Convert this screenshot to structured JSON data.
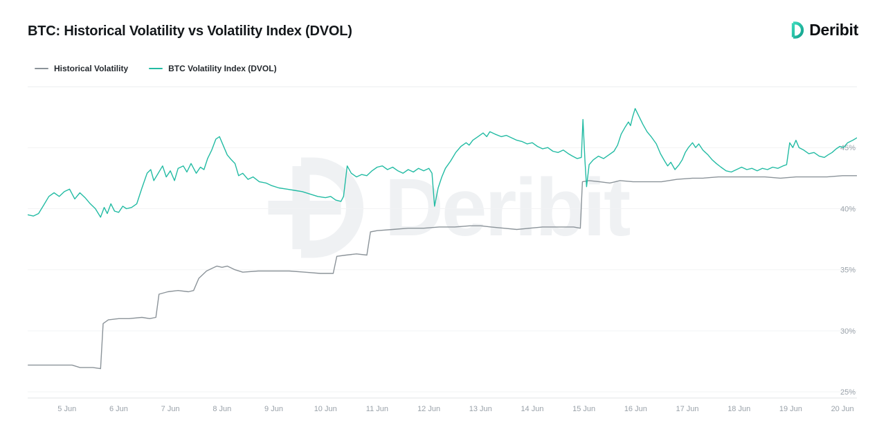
{
  "header": {
    "title": "BTC: Historical Volatility vs Volatility Index (DVOL)",
    "brand": "Deribit"
  },
  "watermark": {
    "text": "Deribit"
  },
  "legend": [
    {
      "id": "historical-volatility",
      "label": "Historical Volatility",
      "color": "#8b9399"
    },
    {
      "id": "btc-dvol",
      "label": "BTC Volatility Index (DVOL)",
      "color": "#22bba3"
    }
  ],
  "colors": {
    "historical_volatility": "#8b9399",
    "dvol": "#22bba3",
    "brand_teal": "#1cb39b"
  },
  "chart_data": {
    "type": "line",
    "title": "BTC: Historical Volatility vs Volatility Index (DVOL)",
    "x_unit": "date (June)",
    "xlim": [
      4.24,
      20.28
    ],
    "ylim": [
      24.5,
      50
    ],
    "grid": "horizontal",
    "legend_position": "top-left",
    "yticks": [
      25,
      30,
      35,
      40,
      45
    ],
    "ytick_suffix": "%",
    "xticks": [
      5,
      6,
      7,
      8,
      9,
      10,
      11,
      12,
      13,
      14,
      15,
      16,
      17,
      18,
      19,
      20
    ],
    "xtick_labels": [
      "5 Jun",
      "6 Jun",
      "7 Jun",
      "8 Jun",
      "9 Jun",
      "10 Jun",
      "11 Jun",
      "12 Jun",
      "13 Jun",
      "14 Jun",
      "15 Jun",
      "16 Jun",
      "17 Jun",
      "18 Jun",
      "19 Jun",
      "20 Jun"
    ],
    "series": [
      {
        "id": "historical-volatility",
        "name": "Historical Volatility",
        "color": "#8b9399",
        "points": [
          [
            4.25,
            27.2
          ],
          [
            4.7,
            27.2
          ],
          [
            5.1,
            27.2
          ],
          [
            5.25,
            27.0
          ],
          [
            5.5,
            27.0
          ],
          [
            5.65,
            26.9
          ],
          [
            5.7,
            30.6
          ],
          [
            5.8,
            30.9
          ],
          [
            6.0,
            31.0
          ],
          [
            6.2,
            31.0
          ],
          [
            6.45,
            31.1
          ],
          [
            6.6,
            31.0
          ],
          [
            6.72,
            31.1
          ],
          [
            6.78,
            33.0
          ],
          [
            6.95,
            33.2
          ],
          [
            7.15,
            33.3
          ],
          [
            7.35,
            33.2
          ],
          [
            7.45,
            33.3
          ],
          [
            7.55,
            34.3
          ],
          [
            7.7,
            34.9
          ],
          [
            7.8,
            35.1
          ],
          [
            7.9,
            35.3
          ],
          [
            8.0,
            35.2
          ],
          [
            8.1,
            35.3
          ],
          [
            8.25,
            35.0
          ],
          [
            8.4,
            34.8
          ],
          [
            8.7,
            34.9
          ],
          [
            9.0,
            34.9
          ],
          [
            9.3,
            34.9
          ],
          [
            9.6,
            34.8
          ],
          [
            9.9,
            34.7
          ],
          [
            10.15,
            34.7
          ],
          [
            10.22,
            36.1
          ],
          [
            10.4,
            36.2
          ],
          [
            10.6,
            36.3
          ],
          [
            10.8,
            36.2
          ],
          [
            10.87,
            38.1
          ],
          [
            11.0,
            38.2
          ],
          [
            11.3,
            38.3
          ],
          [
            11.6,
            38.4
          ],
          [
            11.9,
            38.4
          ],
          [
            12.2,
            38.5
          ],
          [
            12.5,
            38.5
          ],
          [
            12.8,
            38.6
          ],
          [
            13.0,
            38.6
          ],
          [
            13.2,
            38.5
          ],
          [
            13.45,
            38.4
          ],
          [
            13.7,
            38.3
          ],
          [
            13.95,
            38.4
          ],
          [
            14.2,
            38.5
          ],
          [
            14.5,
            38.5
          ],
          [
            14.8,
            38.5
          ],
          [
            14.93,
            38.4
          ],
          [
            14.97,
            42.2
          ],
          [
            15.1,
            42.3
          ],
          [
            15.3,
            42.2
          ],
          [
            15.5,
            42.1
          ],
          [
            15.7,
            42.3
          ],
          [
            15.95,
            42.2
          ],
          [
            16.2,
            42.2
          ],
          [
            16.5,
            42.2
          ],
          [
            16.8,
            42.4
          ],
          [
            17.1,
            42.5
          ],
          [
            17.3,
            42.5
          ],
          [
            17.6,
            42.6
          ],
          [
            17.9,
            42.6
          ],
          [
            18.2,
            42.6
          ],
          [
            18.5,
            42.6
          ],
          [
            18.8,
            42.5
          ],
          [
            19.1,
            42.6
          ],
          [
            19.4,
            42.6
          ],
          [
            19.7,
            42.6
          ],
          [
            20.0,
            42.7
          ],
          [
            20.28,
            42.7
          ]
        ]
      },
      {
        "id": "btc-dvol",
        "name": "BTC Volatility Index (DVOL)",
        "color": "#22bba3",
        "points": [
          [
            4.24,
            39.5
          ],
          [
            4.35,
            39.4
          ],
          [
            4.45,
            39.6
          ],
          [
            4.55,
            40.3
          ],
          [
            4.65,
            41.0
          ],
          [
            4.75,
            41.3
          ],
          [
            4.85,
            41.0
          ],
          [
            4.95,
            41.4
          ],
          [
            5.05,
            41.6
          ],
          [
            5.15,
            40.8
          ],
          [
            5.25,
            41.3
          ],
          [
            5.35,
            40.9
          ],
          [
            5.45,
            40.4
          ],
          [
            5.55,
            40.0
          ],
          [
            5.65,
            39.3
          ],
          [
            5.72,
            40.1
          ],
          [
            5.78,
            39.6
          ],
          [
            5.85,
            40.4
          ],
          [
            5.92,
            39.8
          ],
          [
            6.0,
            39.7
          ],
          [
            6.08,
            40.2
          ],
          [
            6.15,
            40.0
          ],
          [
            6.25,
            40.1
          ],
          [
            6.35,
            40.4
          ],
          [
            6.45,
            41.7
          ],
          [
            6.55,
            42.9
          ],
          [
            6.62,
            43.2
          ],
          [
            6.68,
            42.3
          ],
          [
            6.75,
            42.8
          ],
          [
            6.85,
            43.5
          ],
          [
            6.92,
            42.6
          ],
          [
            7.0,
            43.1
          ],
          [
            7.08,
            42.3
          ],
          [
            7.15,
            43.3
          ],
          [
            7.25,
            43.5
          ],
          [
            7.32,
            43.0
          ],
          [
            7.4,
            43.7
          ],
          [
            7.5,
            42.9
          ],
          [
            7.58,
            43.4
          ],
          [
            7.65,
            43.2
          ],
          [
            7.72,
            44.1
          ],
          [
            7.8,
            44.8
          ],
          [
            7.88,
            45.7
          ],
          [
            7.95,
            45.9
          ],
          [
            8.02,
            45.2
          ],
          [
            8.1,
            44.4
          ],
          [
            8.18,
            44.0
          ],
          [
            8.25,
            43.7
          ],
          [
            8.32,
            42.7
          ],
          [
            8.4,
            42.9
          ],
          [
            8.5,
            42.4
          ],
          [
            8.6,
            42.6
          ],
          [
            8.72,
            42.2
          ],
          [
            8.85,
            42.1
          ],
          [
            8.95,
            41.9
          ],
          [
            9.1,
            41.7
          ],
          [
            9.25,
            41.6
          ],
          [
            9.4,
            41.5
          ],
          [
            9.55,
            41.4
          ],
          [
            9.7,
            41.2
          ],
          [
            9.85,
            41.0
          ],
          [
            10.0,
            40.9
          ],
          [
            10.1,
            41.0
          ],
          [
            10.2,
            40.7
          ],
          [
            10.3,
            40.6
          ],
          [
            10.35,
            41.0
          ],
          [
            10.42,
            43.5
          ],
          [
            10.5,
            42.9
          ],
          [
            10.6,
            42.6
          ],
          [
            10.7,
            42.8
          ],
          [
            10.8,
            42.7
          ],
          [
            10.9,
            43.1
          ],
          [
            11.0,
            43.4
          ],
          [
            11.1,
            43.5
          ],
          [
            11.2,
            43.2
          ],
          [
            11.3,
            43.4
          ],
          [
            11.4,
            43.1
          ],
          [
            11.5,
            42.9
          ],
          [
            11.6,
            43.2
          ],
          [
            11.7,
            43.0
          ],
          [
            11.8,
            43.3
          ],
          [
            11.9,
            43.1
          ],
          [
            12.0,
            43.3
          ],
          [
            12.06,
            42.9
          ],
          [
            12.11,
            40.2
          ],
          [
            12.18,
            41.7
          ],
          [
            12.25,
            42.6
          ],
          [
            12.32,
            43.3
          ],
          [
            12.42,
            43.9
          ],
          [
            12.52,
            44.6
          ],
          [
            12.62,
            45.1
          ],
          [
            12.72,
            45.4
          ],
          [
            12.78,
            45.2
          ],
          [
            12.85,
            45.6
          ],
          [
            12.95,
            45.9
          ],
          [
            13.05,
            46.2
          ],
          [
            13.12,
            45.9
          ],
          [
            13.18,
            46.3
          ],
          [
            13.28,
            46.1
          ],
          [
            13.4,
            45.9
          ],
          [
            13.5,
            46.0
          ],
          [
            13.6,
            45.8
          ],
          [
            13.7,
            45.6
          ],
          [
            13.8,
            45.5
          ],
          [
            13.9,
            45.3
          ],
          [
            14.0,
            45.4
          ],
          [
            14.1,
            45.1
          ],
          [
            14.2,
            44.9
          ],
          [
            14.3,
            45.0
          ],
          [
            14.4,
            44.7
          ],
          [
            14.5,
            44.6
          ],
          [
            14.6,
            44.8
          ],
          [
            14.7,
            44.5
          ],
          [
            14.78,
            44.3
          ],
          [
            14.87,
            44.1
          ],
          [
            14.95,
            44.2
          ],
          [
            14.98,
            47.3
          ],
          [
            15.02,
            43.9
          ],
          [
            15.05,
            41.8
          ],
          [
            15.1,
            43.6
          ],
          [
            15.18,
            44.0
          ],
          [
            15.28,
            44.3
          ],
          [
            15.38,
            44.1
          ],
          [
            15.48,
            44.4
          ],
          [
            15.58,
            44.7
          ],
          [
            15.65,
            45.2
          ],
          [
            15.72,
            46.1
          ],
          [
            15.8,
            46.7
          ],
          [
            15.86,
            47.1
          ],
          [
            15.9,
            46.8
          ],
          [
            15.94,
            47.5
          ],
          [
            15.99,
            48.2
          ],
          [
            16.06,
            47.6
          ],
          [
            16.14,
            46.9
          ],
          [
            16.22,
            46.3
          ],
          [
            16.3,
            45.9
          ],
          [
            16.4,
            45.3
          ],
          [
            16.48,
            44.5
          ],
          [
            16.56,
            43.9
          ],
          [
            16.62,
            43.5
          ],
          [
            16.68,
            43.8
          ],
          [
            16.76,
            43.2
          ],
          [
            16.84,
            43.6
          ],
          [
            16.9,
            44.0
          ],
          [
            16.96,
            44.6
          ],
          [
            17.02,
            45.0
          ],
          [
            17.1,
            45.4
          ],
          [
            17.16,
            45.0
          ],
          [
            17.22,
            45.3
          ],
          [
            17.3,
            44.8
          ],
          [
            17.4,
            44.4
          ],
          [
            17.48,
            44.0
          ],
          [
            17.56,
            43.7
          ],
          [
            17.65,
            43.4
          ],
          [
            17.75,
            43.1
          ],
          [
            17.85,
            43.0
          ],
          [
            17.95,
            43.2
          ],
          [
            18.05,
            43.4
          ],
          [
            18.15,
            43.2
          ],
          [
            18.25,
            43.3
          ],
          [
            18.35,
            43.1
          ],
          [
            18.45,
            43.3
          ],
          [
            18.55,
            43.2
          ],
          [
            18.65,
            43.4
          ],
          [
            18.75,
            43.3
          ],
          [
            18.85,
            43.5
          ],
          [
            18.92,
            43.6
          ],
          [
            18.98,
            45.4
          ],
          [
            19.04,
            45.0
          ],
          [
            19.1,
            45.6
          ],
          [
            19.16,
            45.0
          ],
          [
            19.25,
            44.8
          ],
          [
            19.35,
            44.5
          ],
          [
            19.45,
            44.6
          ],
          [
            19.55,
            44.3
          ],
          [
            19.65,
            44.2
          ],
          [
            19.72,
            44.4
          ],
          [
            19.8,
            44.6
          ],
          [
            19.88,
            44.9
          ],
          [
            19.95,
            45.1
          ],
          [
            20.02,
            45.0
          ],
          [
            20.1,
            45.4
          ],
          [
            20.2,
            45.6
          ],
          [
            20.28,
            45.8
          ]
        ]
      }
    ]
  }
}
